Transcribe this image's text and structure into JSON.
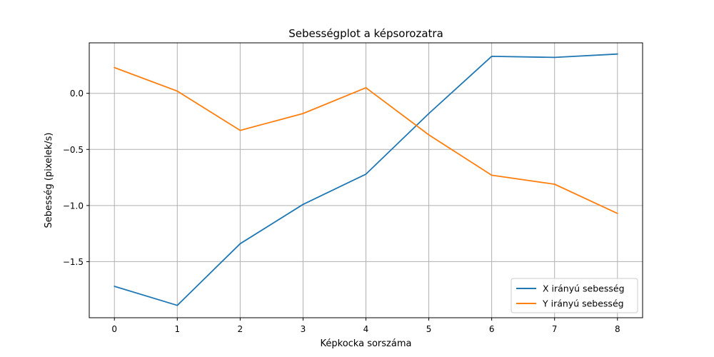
{
  "chart_data": {
    "type": "line",
    "title": "Sebességplot a képsorozatra",
    "xlabel": "Képkocka sorszáma",
    "ylabel": "Sebesség (pixelek/s)",
    "x": [
      0,
      1,
      2,
      3,
      4,
      5,
      6,
      7,
      8
    ],
    "xlim": [
      -0.4,
      8.4
    ],
    "ylim": [
      -2.0,
      0.45
    ],
    "x_ticks": [
      0,
      1,
      2,
      3,
      4,
      5,
      6,
      7,
      8
    ],
    "x_tick_labels": [
      "0",
      "1",
      "2",
      "3",
      "4",
      "5",
      "6",
      "7",
      "8"
    ],
    "y_ticks": [
      -1.5,
      -1.0,
      -0.5,
      0.0
    ],
    "y_tick_labels": [
      "−1.5",
      "−1.0",
      "−0.5",
      "0.0"
    ],
    "grid": true,
    "legend_position": "lower-right",
    "series": [
      {
        "name": "X irányú sebesség",
        "color": "#1f77b4",
        "values": [
          -1.72,
          -1.89,
          -1.34,
          -0.99,
          -0.72,
          -0.18,
          0.33,
          0.32,
          0.35
        ]
      },
      {
        "name": "Y irányú sebesség",
        "color": "#ff7f0e",
        "values": [
          0.23,
          0.02,
          -0.33,
          -0.18,
          0.05,
          -0.37,
          -0.73,
          -0.81,
          -1.07
        ]
      }
    ]
  }
}
